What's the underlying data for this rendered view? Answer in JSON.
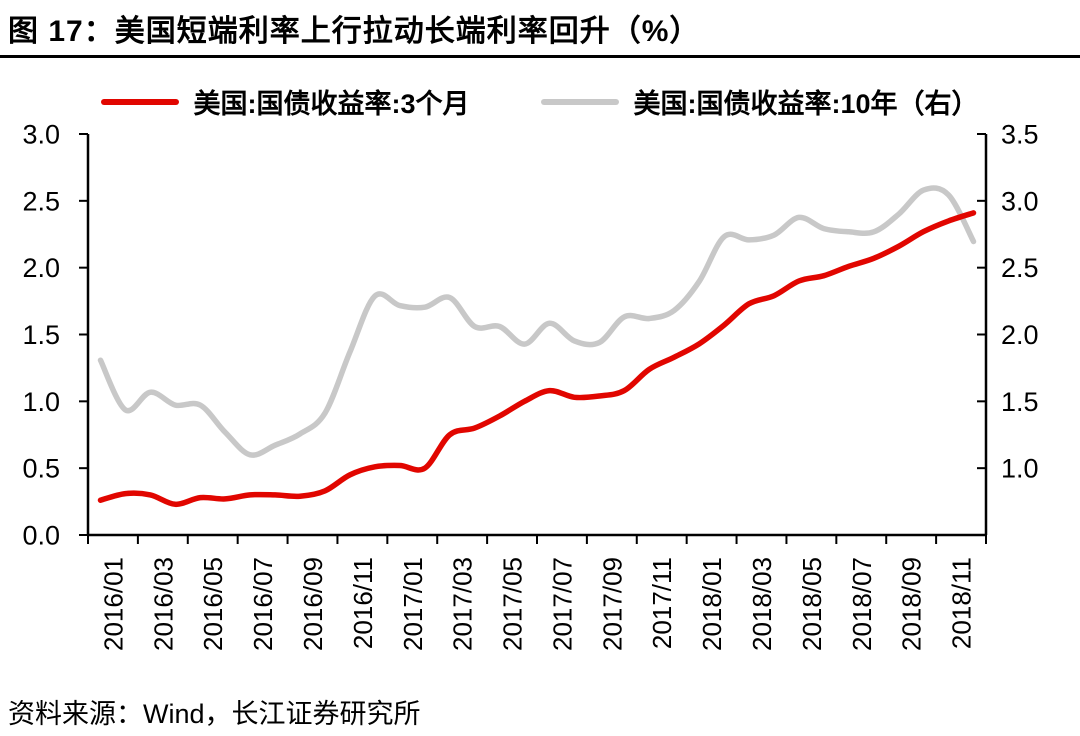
{
  "title": "图 17：美国短端利率上行拉动长端利率回升（%）",
  "source": "资料来源：Wind，长江证券研究所",
  "colors": {
    "series_3m": "#e10600",
    "series_10y": "#c8c8c8",
    "axis": "#000000",
    "title_rule": "#000000"
  },
  "chart_data": {
    "type": "line",
    "title": "图 17：美国短端利率上行拉动长端利率回升（%）",
    "smoothed": true,
    "grid": false,
    "legend_position": "top",
    "x_tick_labels": [
      "2016/01",
      "2016/03",
      "2016/05",
      "2016/07",
      "2016/09",
      "2016/11",
      "2017/01",
      "2017/03",
      "2017/05",
      "2017/07",
      "2017/09",
      "2017/11",
      "2018/01",
      "2018/03",
      "2018/05",
      "2018/07",
      "2018/09",
      "2018/11"
    ],
    "x_months": [
      "2016/01",
      "2016/02",
      "2016/03",
      "2016/04",
      "2016/05",
      "2016/06",
      "2016/07",
      "2016/08",
      "2016/09",
      "2016/10",
      "2016/11",
      "2016/12",
      "2017/01",
      "2017/02",
      "2017/03",
      "2017/04",
      "2017/05",
      "2017/06",
      "2017/07",
      "2017/08",
      "2017/09",
      "2017/10",
      "2017/11",
      "2017/12",
      "2018/01",
      "2018/02",
      "2018/03",
      "2018/04",
      "2018/05",
      "2018/06",
      "2018/07",
      "2018/08",
      "2018/09",
      "2018/10",
      "2018/11",
      "2018/12"
    ],
    "left_axis": {
      "min": 0.0,
      "max": 3.0,
      "step": 0.5,
      "tick_labels": [
        "3.0",
        "2.5",
        "2.0",
        "1.5",
        "1.0",
        "0.5",
        "0.0"
      ]
    },
    "right_axis": {
      "min": 1.0,
      "max": 3.5,
      "step": 0.5,
      "tick_labels": [
        "3.5",
        "3.0",
        "2.5",
        "2.0",
        "1.5",
        "1.0"
      ]
    },
    "series": [
      {
        "name": "美国:国债收益率:3个月",
        "axis": "left",
        "color": "#e10600",
        "values": [
          0.26,
          0.31,
          0.3,
          0.23,
          0.28,
          0.27,
          0.3,
          0.3,
          0.29,
          0.33,
          0.45,
          0.51,
          0.52,
          0.5,
          0.75,
          0.8,
          0.89,
          1.0,
          1.08,
          1.03,
          1.04,
          1.08,
          1.24,
          1.33,
          1.43,
          1.57,
          1.73,
          1.79,
          1.9,
          1.94,
          2.01,
          2.07,
          2.16,
          2.27,
          2.35,
          2.41
        ]
      },
      {
        "name": "美国:国债收益率:10年（右）",
        "axis": "right",
        "color": "#c8c8c8",
        "values": [
          2.09,
          1.78,
          1.89,
          1.81,
          1.81,
          1.64,
          1.5,
          1.56,
          1.63,
          1.76,
          2.14,
          2.49,
          2.43,
          2.42,
          2.48,
          2.3,
          2.3,
          2.19,
          2.32,
          2.21,
          2.2,
          2.36,
          2.35,
          2.4,
          2.58,
          2.86,
          2.84,
          2.87,
          2.98,
          2.91,
          2.89,
          2.89,
          3.0,
          3.15,
          3.12,
          2.83
        ]
      }
    ]
  }
}
